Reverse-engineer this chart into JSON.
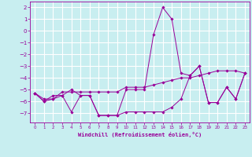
{
  "xlabel": "Windchill (Refroidissement éolien,°C)",
  "background_color": "#c8eef0",
  "grid_color": "#ffffff",
  "line_color": "#990099",
  "x": [
    0,
    1,
    2,
    3,
    4,
    5,
    6,
    7,
    8,
    9,
    10,
    11,
    12,
    13,
    14,
    15,
    16,
    17,
    18,
    19,
    20,
    21,
    22,
    23
  ],
  "series": [
    [
      -5.3,
      -6.0,
      -5.5,
      -5.5,
      -6.9,
      -5.5,
      -5.5,
      -7.2,
      -7.2,
      -7.2,
      -5.0,
      -5.0,
      -5.0,
      -0.3,
      2.0,
      1.0,
      -3.6,
      -3.8,
      -3.0,
      -6.1,
      -6.1,
      -4.8,
      -5.8,
      -3.6
    ],
    [
      -5.3,
      -5.8,
      -5.8,
      -5.2,
      -5.2,
      -5.2,
      -5.2,
      -5.2,
      -5.2,
      -5.2,
      -4.8,
      -4.8,
      -4.8,
      -4.6,
      -4.4,
      -4.2,
      -4.0,
      -4.0,
      -3.8,
      -3.6,
      -3.4,
      -3.4,
      -3.4,
      -3.6
    ],
    [
      -5.3,
      -6.0,
      -5.8,
      -5.5,
      -5.0,
      -5.5,
      -5.5,
      -7.2,
      -7.2,
      -7.2,
      -6.9,
      -6.9,
      -6.9,
      -6.9,
      -6.9,
      -6.5,
      -5.8,
      -3.8,
      -3.0,
      -6.1,
      -6.1,
      -4.8,
      -5.8,
      -3.6
    ]
  ],
  "ylim": [
    -7.8,
    2.5
  ],
  "yticks": [
    2,
    1,
    0,
    -1,
    -2,
    -3,
    -4,
    -5,
    -6,
    -7
  ],
  "xlim": [
    -0.5,
    23.5
  ],
  "xticks": [
    0,
    1,
    2,
    3,
    4,
    5,
    6,
    7,
    8,
    9,
    10,
    11,
    12,
    13,
    14,
    15,
    16,
    17,
    18,
    19,
    20,
    21,
    22,
    23
  ]
}
